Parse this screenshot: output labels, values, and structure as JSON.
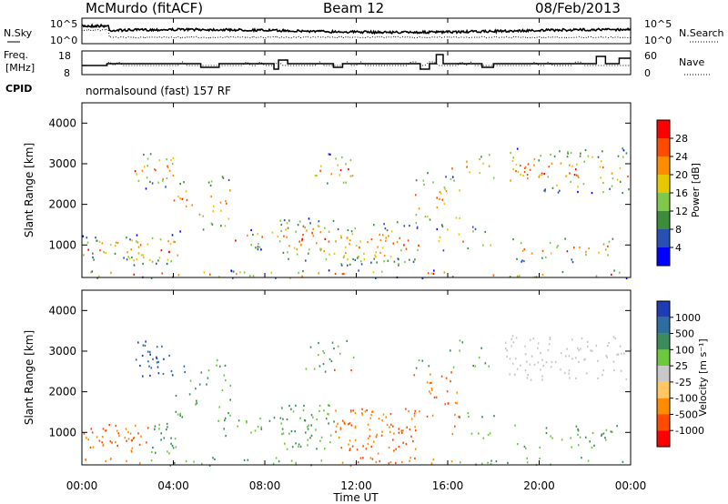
{
  "header": {
    "station": "McMurdo (fitACF)",
    "beam": "Beam 12",
    "date": "08/Feb/2013"
  },
  "noise_panel": {
    "left_label": "N.Sky",
    "right_label": "N.Search",
    "ticks_left": [
      "10^5",
      "10^0"
    ],
    "ticks_right": [
      "10^5",
      "10^0"
    ]
  },
  "freq_panel": {
    "left_label_line1": "Freq.",
    "left_label_line2": "[MHz]",
    "right_label": "Nave",
    "ticks_left": [
      "18",
      "8"
    ],
    "ticks_right": [
      "60",
      "0"
    ]
  },
  "cpid": {
    "label": "CPID",
    "value": "normalsound (fast) 157 RF"
  },
  "chart_data": [
    {
      "type": "heatmap",
      "name": "Power",
      "ylabel": "Slant Range [km]",
      "xlabel": "Time UT",
      "x_ticks": [
        "00:00",
        "04:00",
        "08:00",
        "12:00",
        "16:00",
        "20:00",
        "00:00"
      ],
      "y_ticks": [
        1000,
        2000,
        3000,
        4000
      ],
      "ylim": [
        200,
        4500
      ],
      "colorbar_label": "Power [dB]",
      "colorbar_ticks": [
        "28",
        "24",
        "20",
        "16",
        "12",
        "8",
        "4"
      ],
      "colorbar_colors": [
        "#ff0000",
        "#ff4a00",
        "#ff8c00",
        "#e6c800",
        "#7fc84a",
        "#3c8c3c",
        "#2850b4",
        "#0000ff"
      ]
    },
    {
      "type": "heatmap",
      "name": "Velocity",
      "ylabel": "Slant Range [km]",
      "xlabel": "Time UT",
      "x_ticks": [
        "00:00",
        "04:00",
        "08:00",
        "12:00",
        "16:00",
        "20:00",
        "00:00"
      ],
      "y_ticks": [
        1000,
        2000,
        3000,
        4000
      ],
      "ylim": [
        200,
        4500
      ],
      "colorbar_label": "Velocity [m s⁻¹]",
      "colorbar_ticks": [
        "1000",
        "500",
        "100",
        "25",
        "-25",
        "-100",
        "-500",
        "-1000"
      ],
      "colorbar_colors": [
        "#1e3cb4",
        "#2d6ea0",
        "#3c8c5a",
        "#6ec83c",
        "#c8c8c8",
        "#ffc864",
        "#ff8c00",
        "#ff4a00",
        "#ff0000"
      ]
    }
  ],
  "x_axis_title": "Time UT"
}
